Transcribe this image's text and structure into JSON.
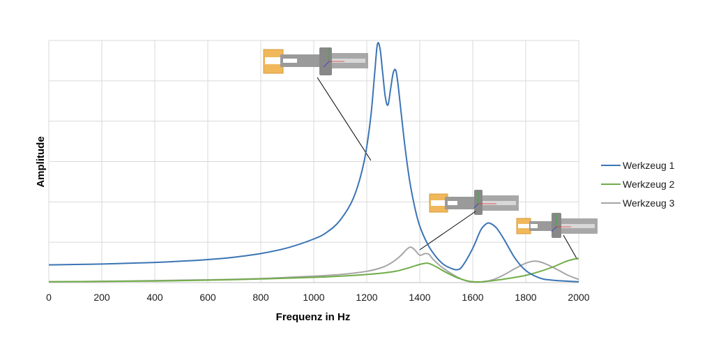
{
  "chart_data": {
    "type": "line",
    "title": "",
    "xlabel": "Frequenz in Hz",
    "ylabel": "Amplitude",
    "xlim": [
      0,
      2000
    ],
    "ylim": [
      0,
      6
    ],
    "x_ticks": [
      "0",
      "200",
      "400",
      "600",
      "800",
      "1000",
      "1200",
      "1400",
      "1600",
      "1800",
      "2000"
    ],
    "y_tick_labels_shown": false,
    "grid": true,
    "legend_position": "right",
    "series": [
      {
        "name": "Werkzeug 1",
        "color": "#3a74b4",
        "points": [
          [
            0,
            0.44
          ],
          [
            100,
            0.45
          ],
          [
            200,
            0.46
          ],
          [
            300,
            0.48
          ],
          [
            400,
            0.5
          ],
          [
            500,
            0.53
          ],
          [
            600,
            0.57
          ],
          [
            700,
            0.63
          ],
          [
            800,
            0.72
          ],
          [
            900,
            0.86
          ],
          [
            1000,
            1.08
          ],
          [
            1050,
            1.25
          ],
          [
            1100,
            1.55
          ],
          [
            1150,
            2.1
          ],
          [
            1190,
            3.0
          ],
          [
            1215,
            4.1
          ],
          [
            1230,
            5.2
          ],
          [
            1240,
            5.9
          ],
          [
            1250,
            5.8
          ],
          [
            1260,
            5.2
          ],
          [
            1270,
            4.6
          ],
          [
            1280,
            4.4
          ],
          [
            1290,
            4.8
          ],
          [
            1300,
            5.2
          ],
          [
            1310,
            5.25
          ],
          [
            1320,
            4.8
          ],
          [
            1340,
            3.6
          ],
          [
            1360,
            2.6
          ],
          [
            1380,
            1.9
          ],
          [
            1400,
            1.4
          ],
          [
            1430,
            0.95
          ],
          [
            1460,
            0.65
          ],
          [
            1490,
            0.45
          ],
          [
            1520,
            0.35
          ],
          [
            1540,
            0.32
          ],
          [
            1560,
            0.4
          ],
          [
            1600,
            0.85
          ],
          [
            1630,
            1.3
          ],
          [
            1650,
            1.45
          ],
          [
            1665,
            1.47
          ],
          [
            1690,
            1.35
          ],
          [
            1720,
            1.05
          ],
          [
            1760,
            0.6
          ],
          [
            1800,
            0.3
          ],
          [
            1850,
            0.12
          ],
          [
            1900,
            0.06
          ],
          [
            2000,
            0.02
          ]
        ]
      },
      {
        "name": "Werkzeug 2",
        "color": "#70ad47",
        "points": [
          [
            0,
            0.02
          ],
          [
            200,
            0.03
          ],
          [
            400,
            0.04
          ],
          [
            600,
            0.06
          ],
          [
            800,
            0.09
          ],
          [
            1000,
            0.13
          ],
          [
            1100,
            0.16
          ],
          [
            1200,
            0.2
          ],
          [
            1300,
            0.27
          ],
          [
            1350,
            0.35
          ],
          [
            1400,
            0.45
          ],
          [
            1430,
            0.48
          ],
          [
            1460,
            0.4
          ],
          [
            1500,
            0.25
          ],
          [
            1550,
            0.1
          ],
          [
            1600,
            0.02
          ],
          [
            1650,
            0.03
          ],
          [
            1700,
            0.07
          ],
          [
            1750,
            0.12
          ],
          [
            1800,
            0.18
          ],
          [
            1850,
            0.27
          ],
          [
            1900,
            0.38
          ],
          [
            1950,
            0.52
          ],
          [
            1980,
            0.58
          ],
          [
            2000,
            0.6
          ]
        ]
      },
      {
        "name": "Werkzeug 3",
        "color": "#a5a5a5",
        "points": [
          [
            0,
            0.02
          ],
          [
            200,
            0.03
          ],
          [
            400,
            0.05
          ],
          [
            600,
            0.07
          ],
          [
            800,
            0.1
          ],
          [
            900,
            0.13
          ],
          [
            1000,
            0.16
          ],
          [
            1100,
            0.2
          ],
          [
            1200,
            0.28
          ],
          [
            1260,
            0.38
          ],
          [
            1300,
            0.52
          ],
          [
            1330,
            0.68
          ],
          [
            1350,
            0.82
          ],
          [
            1365,
            0.88
          ],
          [
            1380,
            0.82
          ],
          [
            1400,
            0.68
          ],
          [
            1420,
            0.72
          ],
          [
            1435,
            0.7
          ],
          [
            1450,
            0.58
          ],
          [
            1480,
            0.4
          ],
          [
            1520,
            0.22
          ],
          [
            1560,
            0.08
          ],
          [
            1600,
            0.01
          ],
          [
            1640,
            0.02
          ],
          [
            1680,
            0.08
          ],
          [
            1720,
            0.2
          ],
          [
            1760,
            0.35
          ],
          [
            1800,
            0.48
          ],
          [
            1830,
            0.53
          ],
          [
            1850,
            0.52
          ],
          [
            1880,
            0.45
          ],
          [
            1920,
            0.32
          ],
          [
            1960,
            0.18
          ],
          [
            2000,
            0.08
          ]
        ]
      }
    ]
  }
}
